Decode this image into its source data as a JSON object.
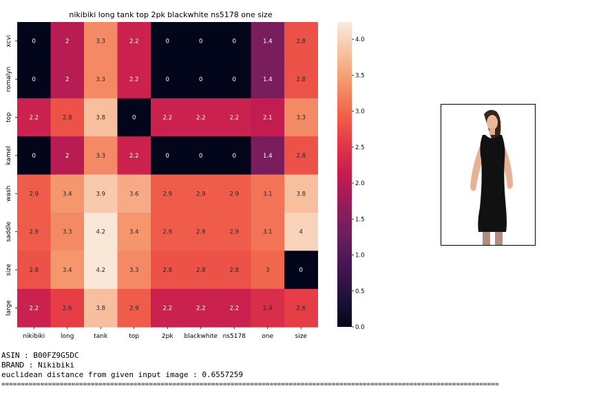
{
  "chart_data": {
    "type": "heatmap",
    "title": "nikibiki long tank top 2pk blackwhite ns5178 one size",
    "x_labels": [
      "nikibiki",
      "long",
      "tank",
      "top",
      "2pk",
      "blackwhite",
      "ns5178",
      "one",
      "size"
    ],
    "y_labels": [
      "xcvi",
      "romalyn",
      "top",
      "kamel",
      "wash",
      "saddle",
      "size",
      "large"
    ],
    "values": [
      [
        0,
        2,
        3.3,
        2.2,
        0,
        0,
        0,
        1.4,
        2.8
      ],
      [
        0,
        2,
        3.3,
        2.2,
        0,
        0,
        0,
        1.4,
        2.8
      ],
      [
        2.2,
        2.8,
        3.8,
        0,
        2.2,
        2.2,
        2.2,
        2.1,
        3.3
      ],
      [
        0,
        2,
        3.3,
        2.2,
        0,
        0,
        0,
        1.4,
        2.8
      ],
      [
        2.9,
        3.4,
        3.9,
        3.6,
        2.9,
        2.9,
        2.9,
        3.1,
        3.8
      ],
      [
        2.9,
        3.3,
        4.2,
        3.4,
        2.9,
        2.9,
        2.9,
        3.1,
        4
      ],
      [
        2.8,
        3.4,
        4.2,
        3.3,
        2.8,
        2.8,
        2.8,
        3,
        0
      ],
      [
        2.2,
        2.6,
        3.8,
        2.9,
        2.2,
        2.2,
        2.2,
        2.4,
        2.6
      ]
    ],
    "colorbar": {
      "min": 0,
      "max": 4.24,
      "ticks": [
        "0.0",
        "0.5",
        "1.0",
        "1.5",
        "2.0",
        "2.5",
        "3.0",
        "3.5",
        "4.0"
      ],
      "colormap": "rocket"
    }
  },
  "info": {
    "asin": "ASIN : B00FZ9G5DC",
    "brand": "BRAND : Nikibiki",
    "distance": "euclidean distance from given input image : 0.6557259",
    "separator": "================================================================================================================================"
  }
}
